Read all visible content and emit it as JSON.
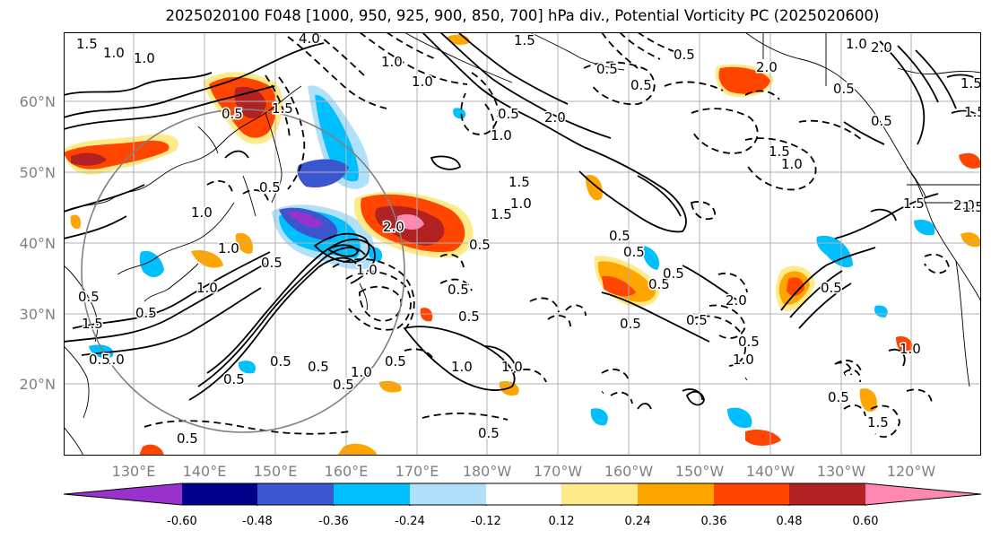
{
  "title": "2025020100 F048 [1000, 950, 925, 900, 850, 700] hPa div., Potential Vorticity PC (2025020600)",
  "lat_labels": [
    "60°N",
    "50°N",
    "40°N",
    "30°N",
    "20°N"
  ],
  "lon_labels": [
    "130°E",
    "140°E",
    "150°E",
    "160°E",
    "170°E",
    "180°W",
    "170°W",
    "160°W",
    "150°W",
    "140°W",
    "130°W",
    "120°W"
  ],
  "colorbar": {
    "colors": [
      "#9932cc",
      "#00008b",
      "#3a57d0",
      "#00bfff",
      "#b0e0fa",
      "#ffffff",
      "#ffea8a",
      "#ffa500",
      "#ff4500",
      "#b22222",
      "#ff88b3"
    ],
    "tick_labels": [
      "-0.60",
      "-0.48",
      "-0.36",
      "-0.24",
      "-0.12",
      "0.12",
      "0.24",
      "0.36",
      "0.48",
      "0.60"
    ]
  },
  "contour_labels": [
    "1.5",
    "1.0",
    "1.0",
    "4.0",
    "1.5",
    "1.0",
    "1.0",
    "0.5",
    "1.5",
    "2.0",
    "1.0",
    "0.5",
    "1.5",
    "1.0",
    "0.5",
    "1.5",
    "2.0",
    "1.5",
    "0.5",
    "1.0",
    "1.0",
    "0.5",
    "0.5",
    "1.0",
    "1.5",
    "0.5",
    "0.5",
    "2.0",
    "1.0",
    "0.5",
    "1.0",
    "0.5",
    "0.5",
    "0.5",
    "1.5",
    "1.0",
    "0.5",
    "0.5",
    "0.5",
    "0.5",
    "1.5",
    "1.0",
    "0.5",
    "0.5",
    "0.5",
    "2.0",
    "0.5",
    "1.0",
    "0.5",
    "1.0",
    "0.5",
    "1.5",
    "0.5",
    "0.5",
    "0.5",
    "0.5",
    "1.0",
    "0.5",
    "0.5",
    "1.0",
    "1.0",
    "0.5",
    "0.5",
    "0.5",
    "2.0",
    "1.5",
    "2.0",
    "1.5"
  ]
}
